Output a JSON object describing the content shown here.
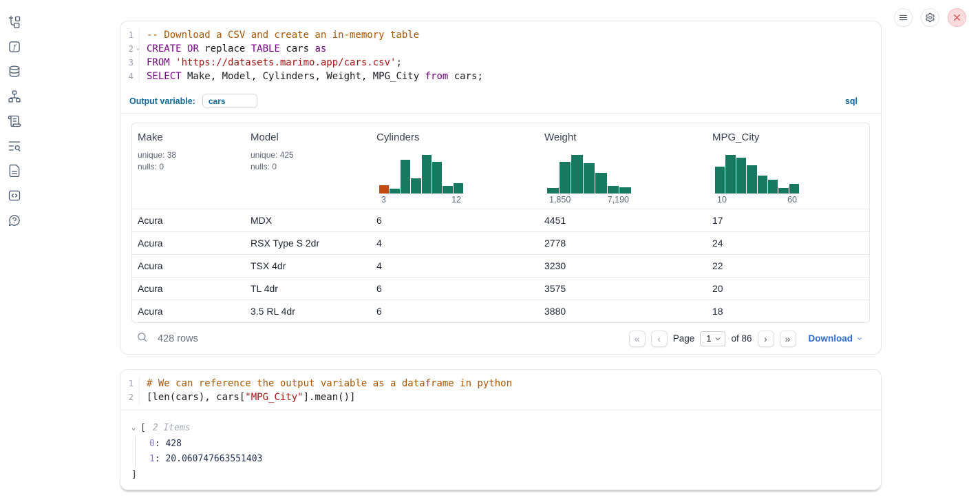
{
  "topbar": {
    "buttons": [
      {
        "icon": "hamburger-menu-icon"
      },
      {
        "icon": "gear-icon"
      },
      {
        "icon": "close-icon"
      }
    ]
  },
  "sidebar": {
    "items": [
      {
        "icon": "file-tree-icon"
      },
      {
        "icon": "function-icon"
      },
      {
        "icon": "database-icon"
      },
      {
        "icon": "dependency-graph-icon"
      },
      {
        "icon": "scroll-logs-icon"
      },
      {
        "icon": "search-list-icon"
      },
      {
        "icon": "document-icon"
      },
      {
        "icon": "snippets-icon"
      },
      {
        "icon": "help-icon"
      }
    ]
  },
  "sql_cell": {
    "code_lines": [
      {
        "tokens": [
          {
            "c": "com",
            "t": "-- Download a CSV and create an in-memory table"
          }
        ]
      },
      {
        "fold": true,
        "tokens": [
          {
            "c": "kw",
            "t": "CREATE"
          },
          {
            "c": "pl",
            "t": " "
          },
          {
            "c": "kw",
            "t": "OR"
          },
          {
            "c": "pl",
            "t": " replace "
          },
          {
            "c": "kw",
            "t": "TABLE"
          },
          {
            "c": "pl",
            "t": " cars "
          },
          {
            "c": "kw",
            "t": "as"
          }
        ]
      },
      {
        "tokens": [
          {
            "c": "kw",
            "t": "FROM"
          },
          {
            "c": "pl",
            "t": " "
          },
          {
            "c": "str",
            "t": "'https://datasets.marimo.app/cars.csv'"
          },
          {
            "c": "pl",
            "t": ";"
          }
        ]
      },
      {
        "tokens": [
          {
            "c": "kw",
            "t": "SELECT"
          },
          {
            "c": "pl",
            "t": " Make, Model, Cylinders, Weight, MPG_City "
          },
          {
            "c": "kw",
            "t": "from"
          },
          {
            "c": "pl",
            "t": " cars;"
          }
        ]
      }
    ],
    "output_variable_label": "Output variable:",
    "output_variable_value": "cars",
    "language_badge": "sql",
    "table": {
      "columns": [
        {
          "label": "Make",
          "stats": [
            "unique: 38",
            "nulls: 0"
          ]
        },
        {
          "label": "Model",
          "stats": [
            "unique: 425",
            "nulls: 0"
          ]
        },
        {
          "label": "Cylinders"
        },
        {
          "label": "Weight"
        },
        {
          "label": "MPG_City"
        }
      ],
      "rows": [
        [
          "Acura",
          "MDX",
          "6",
          "4451",
          "17"
        ],
        [
          "Acura",
          "RSX Type S 2dr",
          "4",
          "2778",
          "24"
        ],
        [
          "Acura",
          "TSX 4dr",
          "4",
          "3230",
          "22"
        ],
        [
          "Acura",
          "TL 4dr",
          "6",
          "3575",
          "20"
        ],
        [
          "Acura",
          "3.5 RL 4dr",
          "6",
          "3880",
          "18"
        ]
      ]
    },
    "footer": {
      "row_count": "428 rows",
      "first_page": "«",
      "prev_page": "‹",
      "page_label": "Page",
      "page_value": "1",
      "of_label": "of 86",
      "next_page": "›",
      "last_page": "»",
      "download_label": "Download"
    }
  },
  "python_cell": {
    "code_lines": [
      {
        "tokens": [
          {
            "c": "com",
            "t": "# We can reference the output variable as a dataframe in python"
          }
        ]
      },
      {
        "tokens": [
          {
            "c": "pl",
            "t": "[len(cars), cars["
          },
          {
            "c": "str",
            "t": "\"MPG_City\""
          },
          {
            "c": "pl",
            "t": "].mean()]"
          }
        ]
      }
    ],
    "output_tree": {
      "collapse_chevron": "⌄",
      "bracket_open": "[",
      "items_count_label": "2 Items",
      "key_suffix": ":",
      "entries": [
        {
          "key": "0",
          "value": "428"
        },
        {
          "key": "1",
          "value": "20.060747663551403"
        }
      ],
      "bracket_close": "]"
    }
  },
  "chart_data": [
    {
      "type": "histogram",
      "title": "Cylinders",
      "x_min_label": "3",
      "x_max_label": "12",
      "bar_heights_rel": [
        0.22,
        0.13,
        0.87,
        0.4,
        1.0,
        0.82,
        0.2,
        0.27
      ],
      "bar_color": "#17795f",
      "first_bar_color": "#c24a14"
    },
    {
      "type": "histogram",
      "title": "Weight",
      "x_min_label": "1,850",
      "x_max_label": "7,190",
      "bar_heights_rel": [
        0.14,
        0.82,
        1.0,
        0.78,
        0.54,
        0.2,
        0.16
      ],
      "bar_color": "#17795f"
    },
    {
      "type": "histogram",
      "title": "MPG_City",
      "x_min_label": "10",
      "x_max_label": "60",
      "bar_heights_rel": [
        0.69,
        1.0,
        0.92,
        0.73,
        0.46,
        0.35,
        0.15,
        0.25
      ],
      "bar_color": "#17795f"
    }
  ],
  "colors": {
    "keyword": "#770088",
    "string": "#aa1111",
    "comment": "#aa5500",
    "accent_blue": "#0d6a9d",
    "link_blue": "#2e6bd1",
    "hist_green": "#17795f",
    "hist_orange": "#c24a14",
    "danger_red": "#e14b4b"
  }
}
